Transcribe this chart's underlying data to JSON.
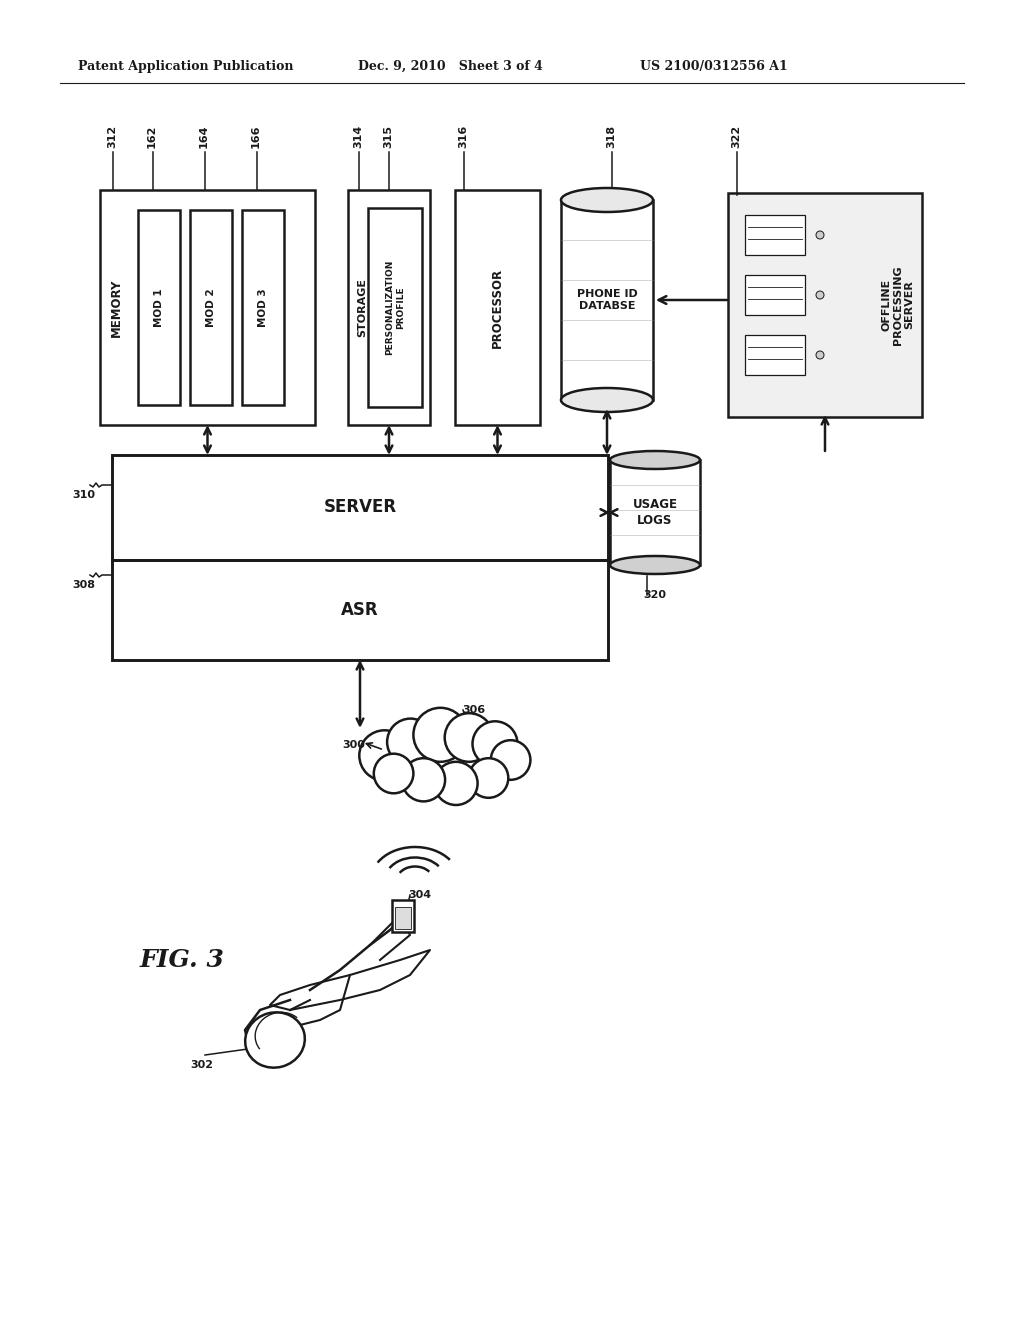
{
  "header_left": "Patent Application Publication",
  "header_mid": "Dec. 9, 2010   Sheet 3 of 4",
  "header_right": "US 2100/0312556 A1",
  "bg_color": "#ffffff",
  "line_color": "#1a1a1a",
  "fig_width": 1024,
  "fig_height": 1320
}
